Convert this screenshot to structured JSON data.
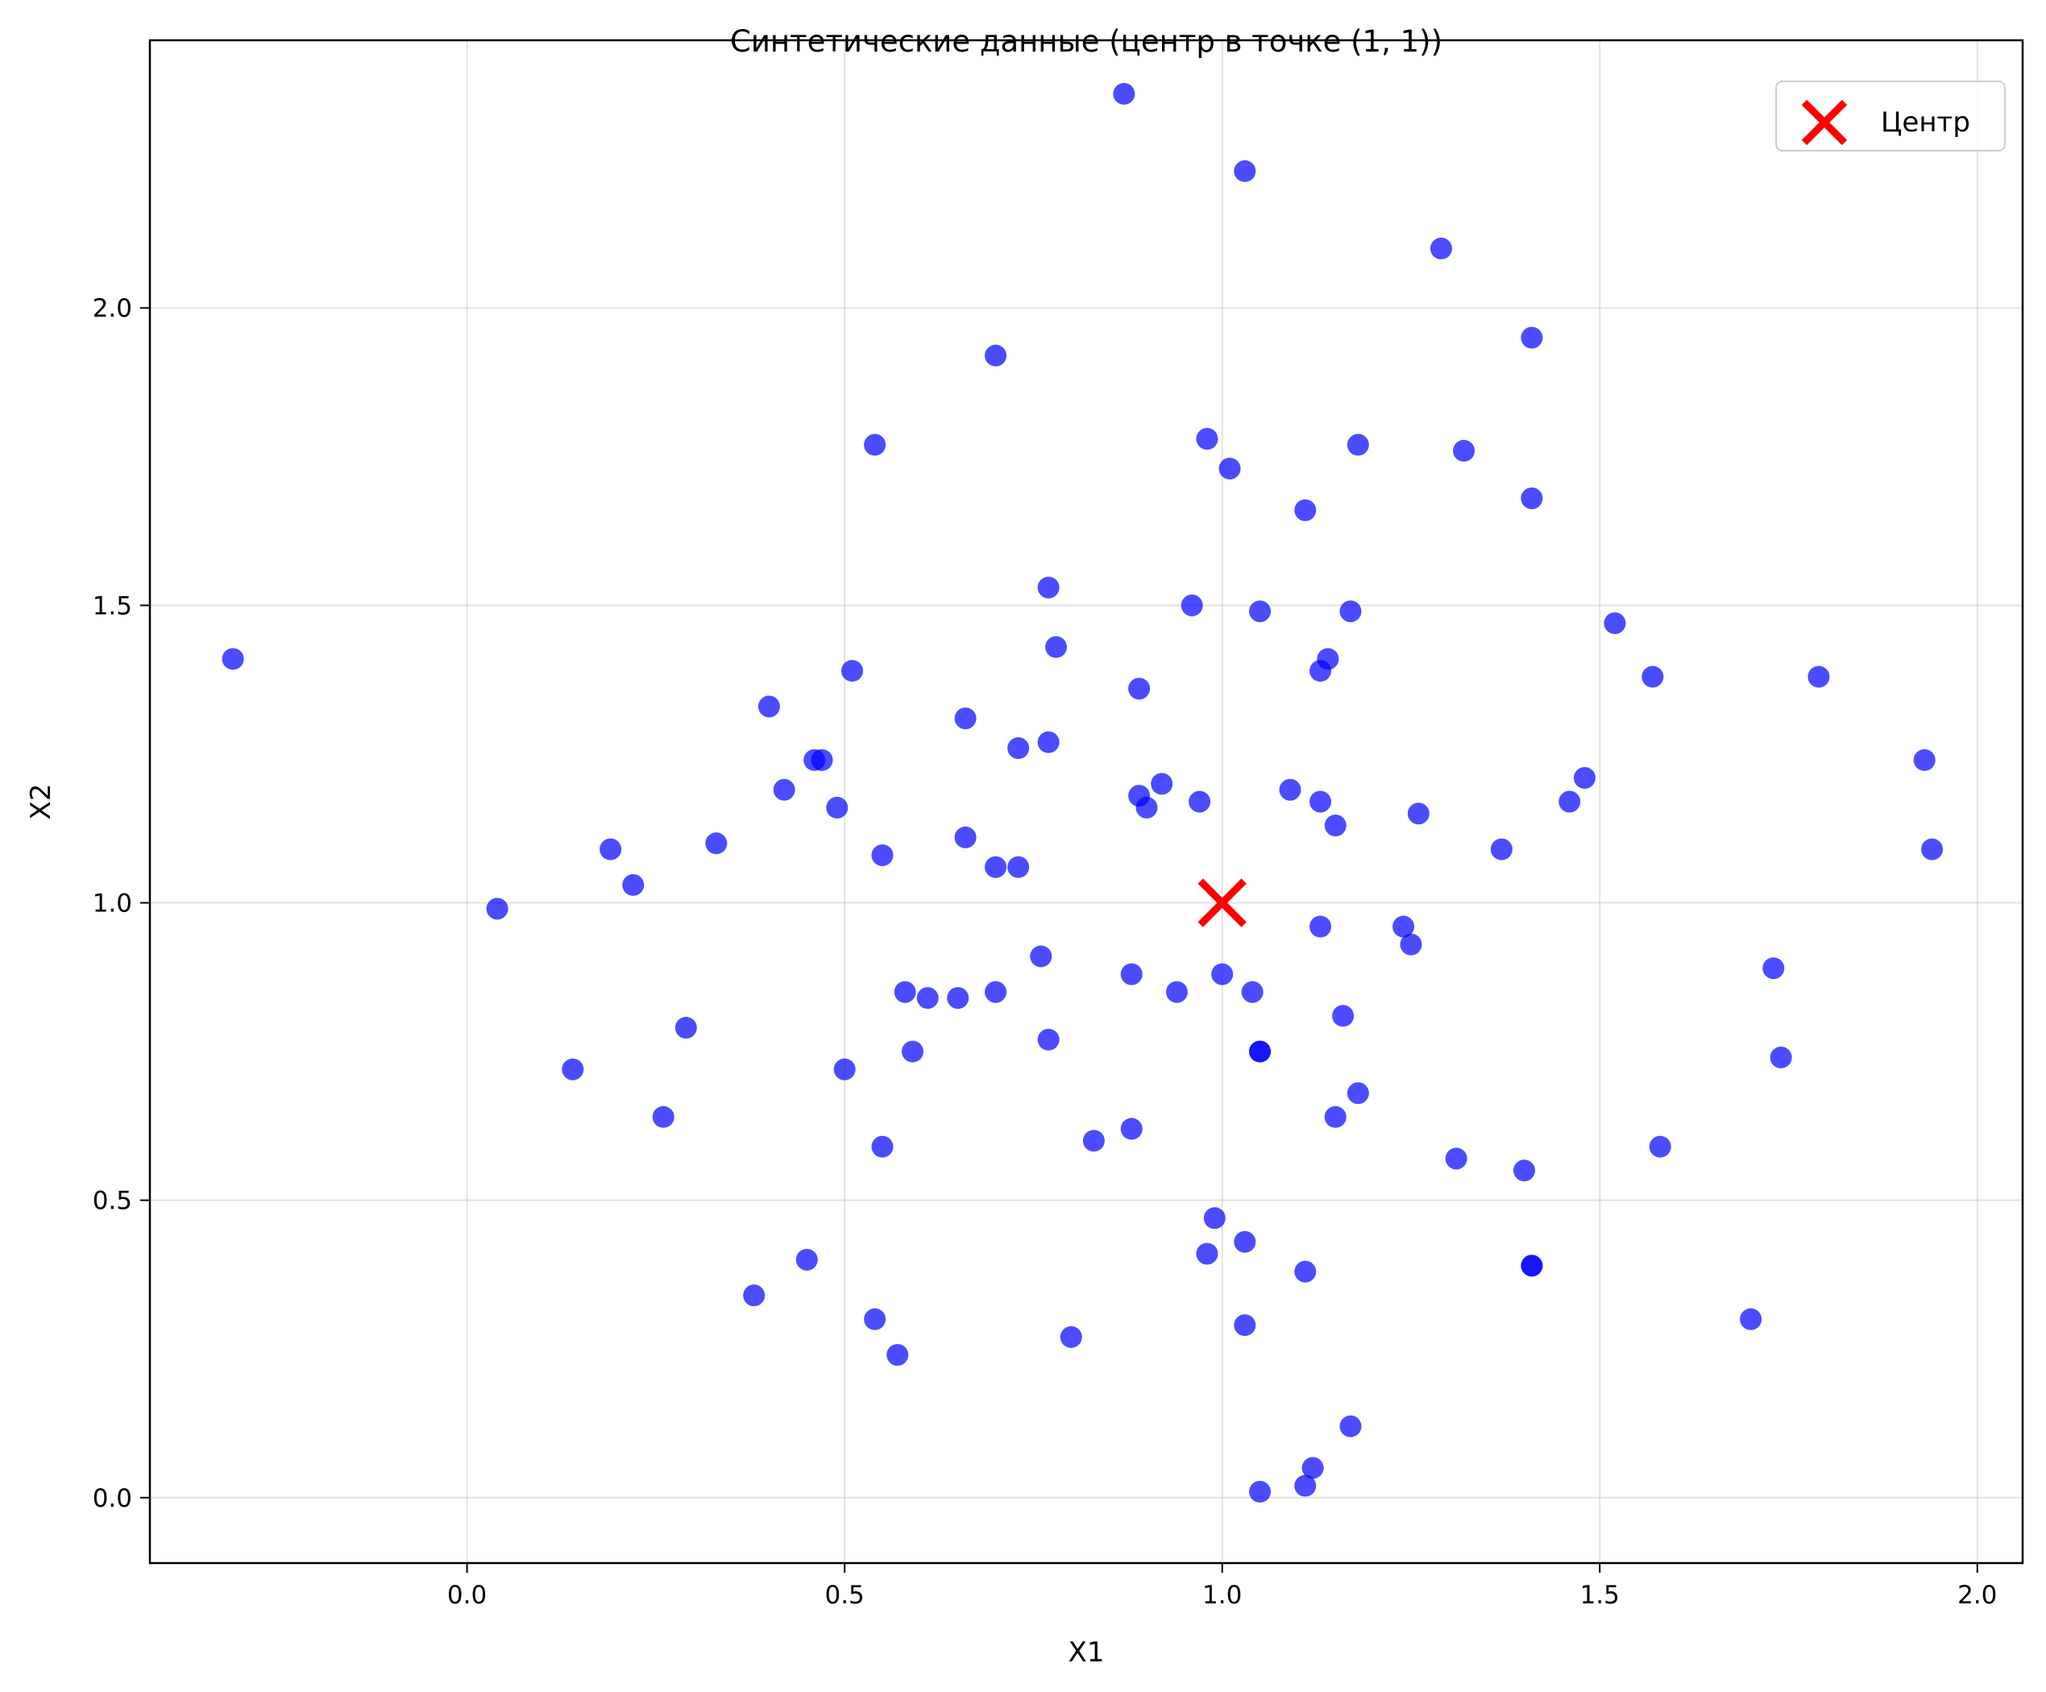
{
  "chart_data": {
    "type": "scatter",
    "title": "Синтетические данные (центр в точке (1, 1))",
    "xlabel": "X1",
    "ylabel": "X2",
    "xlim": [
      -0.42,
      2.06
    ],
    "ylim": [
      -0.11,
      2.45
    ],
    "xticks": [
      0.0,
      0.5,
      1.0,
      1.5,
      2.0
    ],
    "yticks": [
      0.0,
      0.5,
      1.0,
      1.5,
      2.0
    ],
    "grid": true,
    "legend_position": "top-right",
    "series": [
      {
        "kind": "points",
        "color": "#0000ff",
        "x": [
          -0.31,
          0.04,
          0.14,
          0.19,
          0.22,
          0.26,
          0.29,
          0.33,
          0.38,
          0.4,
          0.42,
          0.45,
          0.46,
          0.47,
          0.49,
          0.5,
          0.51,
          0.54,
          0.54,
          0.55,
          0.55,
          0.57,
          0.58,
          0.59,
          0.61,
          0.65,
          0.66,
          0.66,
          0.7,
          0.7,
          0.7,
          0.73,
          0.73,
          0.76,
          0.77,
          0.77,
          0.77,
          0.78,
          0.8,
          0.83,
          0.87,
          0.88,
          0.88,
          0.89,
          0.89,
          0.9,
          0.92,
          0.94,
          0.96,
          0.97,
          0.98,
          0.98,
          0.99,
          1.0,
          1.01,
          1.03,
          1.03,
          1.03,
          1.04,
          1.05,
          1.05,
          1.05,
          1.05,
          1.09,
          1.11,
          1.11,
          1.11,
          1.12,
          1.13,
          1.13,
          1.13,
          1.14,
          1.15,
          1.15,
          1.16,
          1.17,
          1.17,
          1.18,
          1.18,
          1.24,
          1.25,
          1.26,
          1.29,
          1.31,
          1.32,
          1.37,
          1.4,
          1.41,
          1.41,
          1.41,
          1.41,
          1.46,
          1.48,
          1.52,
          1.57,
          1.58,
          1.7,
          1.73,
          1.74,
          1.79,
          1.93,
          1.94
        ],
        "y": [
          1.41,
          0.99,
          0.72,
          1.09,
          1.03,
          0.64,
          0.79,
          1.1,
          0.34,
          1.33,
          1.19,
          0.4,
          1.24,
          1.24,
          1.16,
          0.72,
          1.39,
          1.77,
          0.3,
          1.08,
          0.59,
          0.24,
          0.85,
          0.75,
          0.84,
          0.84,
          1.31,
          1.11,
          1.92,
          0.85,
          1.06,
          1.26,
          1.06,
          0.91,
          1.27,
          1.53,
          0.77,
          1.43,
          0.27,
          0.6,
          2.36,
          0.62,
          0.88,
          1.36,
          1.18,
          1.16,
          1.2,
          0.85,
          1.5,
          1.17,
          1.78,
          0.41,
          0.47,
          0.88,
          1.73,
          2.23,
          0.43,
          0.29,
          0.85,
          1.49,
          0.75,
          0.01,
          0.75,
          1.19,
          0.38,
          0.02,
          1.66,
          0.05,
          1.17,
          1.39,
          0.96,
          1.41,
          1.13,
          0.64,
          0.81,
          1.49,
          0.12,
          0.68,
          1.77,
          0.96,
          0.93,
          1.15,
          2.1,
          0.57,
          1.76,
          1.09,
          0.55,
          1.68,
          1.95,
          0.39,
          0.39,
          1.17,
          1.21,
          1.47,
          1.38,
          0.59,
          0.3,
          0.89,
          0.74,
          1.38,
          1.24,
          1.09
        ]
      },
      {
        "kind": "center",
        "name": "Центр",
        "color": "#ff0000",
        "x": [
          1.0
        ],
        "y": [
          1.0
        ]
      }
    ]
  }
}
